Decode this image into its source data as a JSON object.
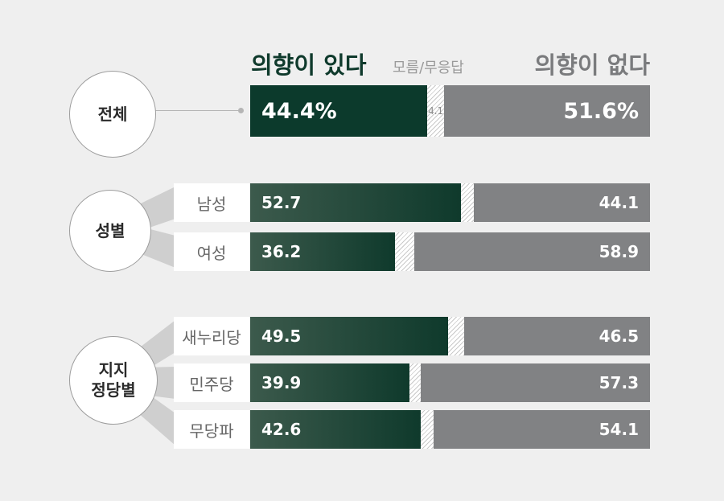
{
  "headers": {
    "yes": "의향이 있다",
    "dont_know": "모름/무응답",
    "no": "의향이 없다"
  },
  "colors": {
    "yes": "#0f3a2c",
    "dont_know_hatch": "#c9c9c9",
    "no": "#818284",
    "background": "#efefef"
  },
  "chart_data": {
    "type": "bar",
    "stacked": true,
    "orientation": "horizontal",
    "series": [
      {
        "name": "의향이 있다"
      },
      {
        "name": "모름/무응답"
      },
      {
        "name": "의향이 없다"
      }
    ],
    "groups": [
      {
        "name": "전체",
        "rows": [
          {
            "label": "",
            "yes": 44.4,
            "yes_text": "44.4%",
            "dk": 4.1,
            "dk_text": "4.1",
            "no": 51.6,
            "no_text": "51.6%"
          }
        ]
      },
      {
        "name": "성별",
        "rows": [
          {
            "label": "남성",
            "yes": 52.7,
            "yes_text": "52.7",
            "dk": 3.2,
            "no": 44.1,
            "no_text": "44.1"
          },
          {
            "label": "여성",
            "yes": 36.2,
            "yes_text": "36.2",
            "dk": 4.9,
            "no": 58.9,
            "no_text": "58.9"
          }
        ]
      },
      {
        "name": "지지\n정당별",
        "rows": [
          {
            "label": "새누리당",
            "yes": 49.5,
            "yes_text": "49.5",
            "dk": 4.0,
            "no": 46.5,
            "no_text": "46.5"
          },
          {
            "label": "민주당",
            "yes": 39.9,
            "yes_text": "39.9",
            "dk": 2.8,
            "no": 57.3,
            "no_text": "57.3"
          },
          {
            "label": "무당파",
            "yes": 42.6,
            "yes_text": "42.6",
            "dk": 3.3,
            "no": 54.1,
            "no_text": "54.1"
          }
        ]
      }
    ]
  }
}
